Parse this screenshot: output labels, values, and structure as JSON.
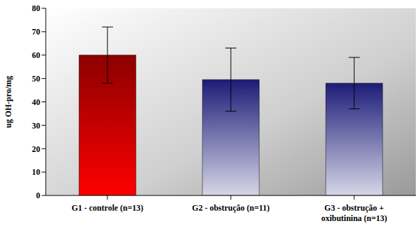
{
  "chart_data": {
    "type": "bar",
    "categories": [
      "G1 - controle (n=13)",
      "G2 - obstrução (n=11)",
      "G3 - obstrução + oxibutinina (n=13)"
    ],
    "values": [
      60,
      49.5,
      48
    ],
    "errors": [
      12,
      13.5,
      11
    ],
    "colors": [
      "#8b0000",
      "#1c1c78",
      "#1c1c78"
    ],
    "y_label": "ug OH-pro/mg",
    "ylim": [
      0,
      80
    ],
    "yticks": [
      0,
      10,
      20,
      30,
      40,
      50,
      60,
      70,
      80
    ],
    "grid": false,
    "data_labels": false
  }
}
